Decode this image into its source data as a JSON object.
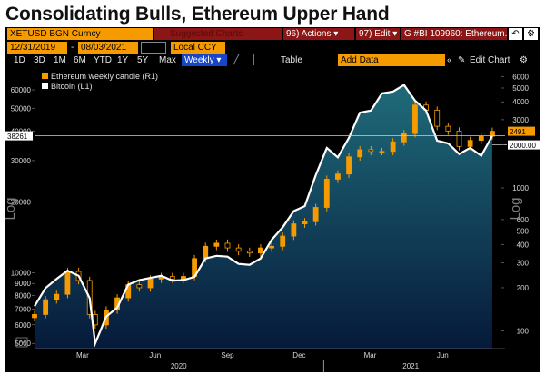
{
  "headline": "Consolidating Bulls, Ethereum Upper Hand",
  "terminal": {
    "row1": {
      "security": "XETUSD BGN Curncy",
      "suggested": "Suggested Charts",
      "actions": "96) Actions ▾",
      "edit": "97) Edit ▾",
      "chart_id": "G #BI 109960: Ethereum...",
      "prev_icon": "back-arrow-icon",
      "settings_icon": "gear-icon"
    },
    "row2": {
      "start_date": "12/31/2019",
      "end_date": "08/03/2021",
      "currency": "Local CCY"
    },
    "row3": {
      "periods": [
        "1D",
        "3D",
        "1M",
        "6M",
        "YTD",
        "1Y",
        "5Y",
        "Max"
      ],
      "frequency": "Weekly ▾",
      "table": "Table",
      "add_data": "Add Data",
      "edit_chart": "Edit Chart",
      "collapse_icon": "double-chevron-left-icon",
      "pen_icon": "pencil-icon",
      "settings_icon": "gear-icon"
    }
  },
  "colors": {
    "candle": "#f59b00",
    "btc_line": "#ffffff",
    "area_top": "#1f6b7a",
    "area_bottom": "#061a3a",
    "flag_orange": "#f59b00",
    "flag_white": "#ffffff"
  },
  "chart_data": {
    "type": "line",
    "legend": [
      "Ethereum weekly candle (R1)",
      "Bitcoin (L1)"
    ],
    "left_axis": {
      "label": "Log",
      "scale": "log",
      "range": [
        4750,
        75000
      ],
      "ticks": [
        5000,
        6000,
        7000,
        8000,
        9000,
        10000,
        20000,
        30000,
        40000,
        50000,
        60000
      ],
      "tick_labels": [
        "5000",
        "6000",
        "7000",
        "8000",
        "9000",
        "10000",
        "20000",
        "30000",
        "40000",
        "50000",
        "60000"
      ]
    },
    "right_axis": {
      "label": "Log",
      "scale": "log",
      "range": [
        75,
        7000
      ],
      "ticks": [
        100,
        200,
        300,
        400,
        500,
        600,
        1000,
        2000,
        3000,
        4000,
        5000,
        6000
      ],
      "tick_labels": [
        "100",
        "200",
        "300",
        "400",
        "500",
        "600",
        "1000",
        "2000",
        "3000",
        "4000",
        "5000",
        "6000"
      ]
    },
    "x_axis": {
      "month_labels": [
        "Mar",
        "Jun",
        "Sep",
        "Dec",
        "Mar",
        "Jun"
      ],
      "year_labels": [
        "2020",
        "2021"
      ]
    },
    "reference_lines": {
      "btc_last": 38261,
      "eth_level": 2000
    },
    "flags": {
      "btc_last_label": "38261",
      "eth_last_label": "2491",
      "eth_ref_label": "2000.00"
    },
    "grid": false,
    "bitcoin": {
      "x": [
        "2019-12-31",
        "2020-01-14",
        "2020-01-28",
        "2020-02-11",
        "2020-02-25",
        "2020-03-10",
        "2020-03-17",
        "2020-03-31",
        "2020-04-14",
        "2020-04-28",
        "2020-05-12",
        "2020-05-26",
        "2020-06-09",
        "2020-06-23",
        "2020-07-07",
        "2020-07-21",
        "2020-08-04",
        "2020-08-18",
        "2020-09-01",
        "2020-09-15",
        "2020-09-29",
        "2020-10-13",
        "2020-10-27",
        "2020-11-10",
        "2020-11-24",
        "2020-12-08",
        "2020-12-22",
        "2021-01-05",
        "2021-01-19",
        "2021-02-02",
        "2021-02-16",
        "2021-03-02",
        "2021-03-16",
        "2021-03-30",
        "2021-04-13",
        "2021-04-27",
        "2021-05-11",
        "2021-05-25",
        "2021-06-08",
        "2021-06-22",
        "2021-07-06",
        "2021-07-20",
        "2021-08-03"
      ],
      "values": [
        7200,
        8600,
        9400,
        10200,
        9700,
        7800,
        5000,
        6500,
        7100,
        8900,
        9300,
        9500,
        9700,
        9250,
        9300,
        9600,
        11500,
        11800,
        11700,
        10900,
        10800,
        11500,
        13800,
        15600,
        18300,
        19200,
        26000,
        34000,
        31000,
        37500,
        48000,
        49000,
        58000,
        59000,
        63000,
        54000,
        49000,
        36500,
        35500,
        32000,
        34000,
        31500,
        38261
      ]
    },
    "ethereum": {
      "x": [
        "2019-12-31",
        "2020-01-14",
        "2020-01-28",
        "2020-02-11",
        "2020-02-25",
        "2020-03-10",
        "2020-03-17",
        "2020-03-31",
        "2020-04-14",
        "2020-04-28",
        "2020-05-12",
        "2020-05-26",
        "2020-06-09",
        "2020-06-23",
        "2020-07-07",
        "2020-07-21",
        "2020-08-04",
        "2020-08-18",
        "2020-09-01",
        "2020-09-15",
        "2020-09-29",
        "2020-10-13",
        "2020-10-27",
        "2020-11-10",
        "2020-11-24",
        "2020-12-08",
        "2020-12-22",
        "2021-01-05",
        "2021-01-19",
        "2021-02-02",
        "2021-02-16",
        "2021-03-02",
        "2021-03-16",
        "2021-03-30",
        "2021-04-13",
        "2021-04-27",
        "2021-05-11",
        "2021-05-25",
        "2021-06-08",
        "2021-06-22",
        "2021-07-06",
        "2021-07-20",
        "2021-08-03"
      ],
      "close": [
        130,
        165,
        180,
        260,
        225,
        130,
        110,
        140,
        170,
        210,
        200,
        230,
        240,
        230,
        240,
        320,
        390,
        410,
        380,
        360,
        350,
        380,
        390,
        460,
        560,
        580,
        730,
        1150,
        1250,
        1650,
        1850,
        1800,
        1800,
        2100,
        2400,
        3800,
        3500,
        2700,
        2500,
        1950,
        2150,
        2300,
        2491
      ]
    }
  }
}
